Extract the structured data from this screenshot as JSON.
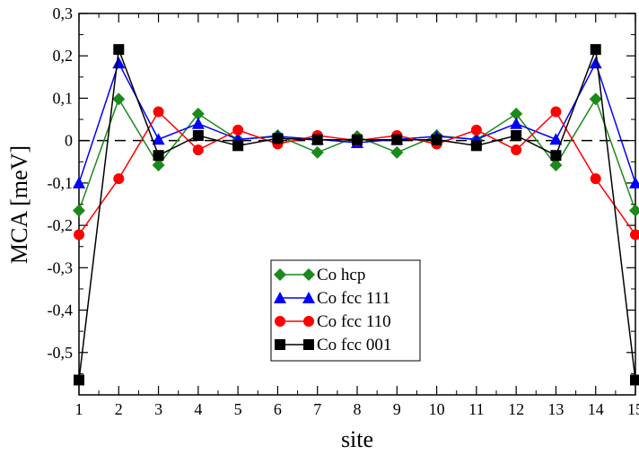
{
  "chart_data": {
    "type": "line",
    "title": "",
    "xlabel": "site",
    "ylabel": "MCA [meV]",
    "xlim": [
      1,
      15
    ],
    "ylim": [
      -0.6,
      0.3
    ],
    "x_ticks": [
      1,
      2,
      3,
      4,
      5,
      6,
      7,
      8,
      9,
      10,
      11,
      12,
      13,
      14,
      15
    ],
    "x_tick_labels": [
      "1",
      "2",
      "3",
      "4",
      "5",
      "6",
      "7",
      "8",
      "9",
      "10",
      "11",
      "12",
      "13",
      "14",
      "15"
    ],
    "y_ticks": [
      0.3,
      0.2,
      0.1,
      0,
      -0.1,
      -0.2,
      -0.3,
      -0.4,
      -0.5
    ],
    "y_tick_labels": [
      "0,3",
      "0,2",
      "0,1",
      "0",
      "-0,1",
      "-0,2",
      "-0,3",
      "-0,4",
      "-0,5"
    ],
    "reference_line": {
      "y": 0,
      "style": "dashed"
    },
    "grid": false,
    "legend_position": "bottom-center",
    "x": [
      1,
      2,
      3,
      4,
      5,
      6,
      7,
      8,
      9,
      10,
      11,
      12,
      13,
      14,
      15
    ],
    "series": [
      {
        "name": "Co hcp",
        "marker": "diamond",
        "color": "#1a8a1a",
        "values": [
          -0.165,
          0.098,
          -0.058,
          0.063,
          0.002,
          0.012,
          -0.028,
          0.01,
          -0.028,
          0.012,
          0.002,
          0.063,
          -0.058,
          0.098,
          -0.165
        ]
      },
      {
        "name": "Co fcc 111",
        "marker": "triangle",
        "color": "#0000ff",
        "values": [
          -0.1,
          0.183,
          0.003,
          0.04,
          0.003,
          0.01,
          0.003,
          -0.005,
          0.003,
          0.01,
          0.003,
          0.04,
          0.003,
          0.183,
          -0.1
        ]
      },
      {
        "name": "Co fcc 110",
        "marker": "circle",
        "color": "#ff0000",
        "values": [
          -0.222,
          -0.09,
          0.068,
          -0.022,
          0.025,
          -0.008,
          0.012,
          0.0,
          0.012,
          -0.008,
          0.025,
          -0.022,
          0.068,
          -0.09,
          -0.222
        ]
      },
      {
        "name": "Co fcc 001",
        "marker": "square",
        "color": "#000000",
        "values": [
          -0.565,
          0.215,
          -0.035,
          0.012,
          -0.012,
          0.005,
          0.002,
          0.002,
          0.002,
          0.002,
          -0.012,
          0.012,
          -0.035,
          0.215,
          -0.565
        ]
      }
    ]
  }
}
